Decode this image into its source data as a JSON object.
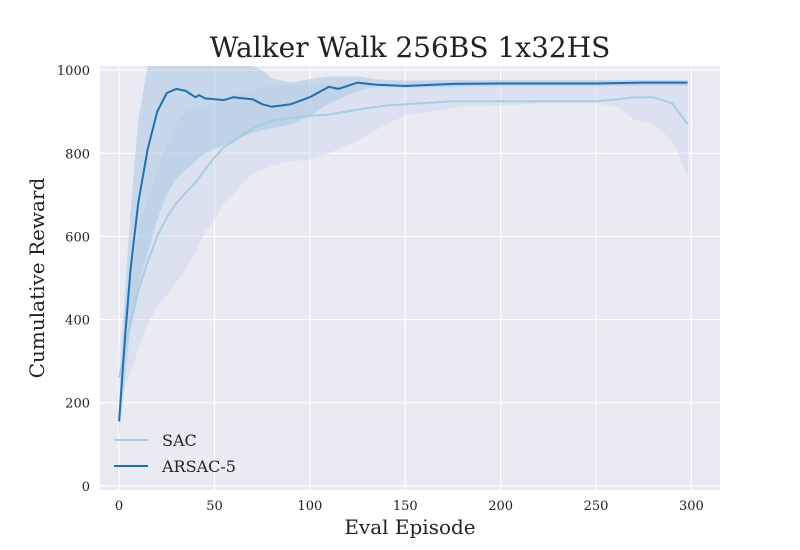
{
  "chart_data": {
    "type": "line",
    "title": "Walker Walk 256BS 1x32HS",
    "xlabel": "Eval Episode",
    "ylabel": "Cumulative Reward",
    "xlim": [
      -10,
      315
    ],
    "ylim": [
      -10,
      1010
    ],
    "xticks": [
      0,
      50,
      100,
      150,
      200,
      250,
      300
    ],
    "yticks": [
      0,
      200,
      400,
      600,
      800,
      1000
    ],
    "grid": true,
    "legend_position": "bottom-left",
    "series": [
      {
        "name": "SAC",
        "color": "#a6cde2",
        "band_color": "#c9d8ea",
        "x": [
          0,
          5,
          10,
          15,
          20,
          25,
          30,
          35,
          40,
          45,
          50,
          55,
          60,
          65,
          70,
          75,
          80,
          90,
          100,
          110,
          125,
          140,
          150,
          175,
          200,
          225,
          250,
          262,
          270,
          280,
          290,
          298
        ],
        "y": [
          260,
          370,
          470,
          540,
          600,
          645,
          680,
          705,
          730,
          760,
          790,
          815,
          830,
          845,
          860,
          870,
          878,
          885,
          890,
          893,
          905,
          915,
          918,
          925,
          925,
          925,
          925,
          930,
          935,
          935,
          920,
          870
        ],
        "lower": [
          200,
          260,
          330,
          390,
          430,
          460,
          490,
          520,
          560,
          610,
          640,
          680,
          700,
          730,
          750,
          760,
          770,
          780,
          785,
          800,
          830,
          870,
          890,
          910,
          915,
          920,
          920,
          910,
          880,
          870,
          830,
          745
        ],
        "upper": [
          330,
          500,
          610,
          690,
          760,
          820,
          870,
          900,
          910,
          915,
          920,
          930,
          940,
          950,
          955,
          960,
          965,
          965,
          965,
          965,
          968,
          968,
          970,
          972,
          975,
          975,
          975,
          975,
          975,
          975,
          975,
          975
        ]
      },
      {
        "name": "ARSAC-5",
        "color": "#2070b0",
        "band_color": "#9ec0de",
        "x": [
          0,
          3,
          6,
          10,
          15,
          20,
          25,
          30,
          35,
          40,
          42,
          45,
          50,
          55,
          60,
          65,
          70,
          75,
          80,
          90,
          100,
          110,
          115,
          125,
          135,
          150,
          175,
          200,
          225,
          250,
          275,
          298
        ],
        "y": [
          155,
          350,
          520,
          680,
          810,
          900,
          945,
          955,
          950,
          935,
          940,
          932,
          930,
          928,
          935,
          932,
          930,
          918,
          912,
          918,
          935,
          960,
          955,
          970,
          965,
          962,
          967,
          968,
          968,
          968,
          970,
          970
        ],
        "lower": [
          120,
          250,
          380,
          480,
          560,
          640,
          700,
          740,
          760,
          780,
          790,
          800,
          810,
          820,
          830,
          840,
          850,
          855,
          860,
          870,
          890,
          920,
          930,
          950,
          960,
          958,
          960,
          962,
          962,
          962,
          962,
          962
        ],
        "upper": [
          190,
          460,
          660,
          880,
          1010,
          1010,
          1010,
          1010,
          1010,
          1010,
          1010,
          1010,
          1010,
          1010,
          1010,
          1010,
          1010,
          1000,
          980,
          970,
          978,
          985,
          985,
          985,
          978,
          975,
          976,
          976,
          976,
          976,
          976,
          976
        ]
      }
    ]
  }
}
